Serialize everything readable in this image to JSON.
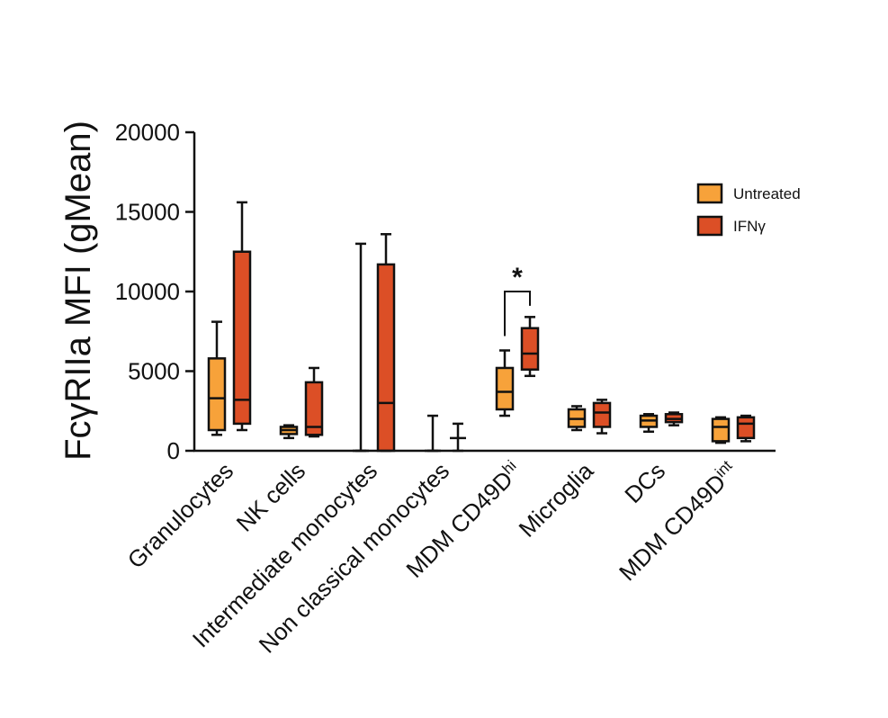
{
  "chart_data": {
    "type": "box",
    "ylabel": "FcγRIIa MFI (gMean)",
    "xlabel": "",
    "ylim": [
      0,
      20000
    ],
    "yticks": [
      0,
      5000,
      10000,
      15000,
      20000
    ],
    "grid": false,
    "legend_position": "top-right",
    "categories": [
      {
        "label": "Granulocytes",
        "sup": ""
      },
      {
        "label": "NK cells",
        "sup": ""
      },
      {
        "label": "Intermediate monocytes",
        "sup": ""
      },
      {
        "label": "Non classical monocytes",
        "sup": ""
      },
      {
        "label": "MDM CD49D",
        "sup": "hi"
      },
      {
        "label": "Microglia",
        "sup": ""
      },
      {
        "label": "DCs",
        "sup": ""
      },
      {
        "label": "MDM CD49D",
        "sup": "int"
      }
    ],
    "series": [
      {
        "name": "Untreated",
        "color": "#F7A23A",
        "boxes": [
          {
            "min": 1000,
            "q1": 1300,
            "median": 3300,
            "q3": 5800,
            "max": 8100
          },
          {
            "min": 800,
            "q1": 1050,
            "median": 1300,
            "q3": 1500,
            "max": 1600
          },
          {
            "min": 0,
            "q1": 0,
            "median": 0,
            "q3": 0,
            "max": 13000
          },
          {
            "min": 0,
            "q1": 0,
            "median": 0,
            "q3": 0,
            "max": 2200
          },
          {
            "min": 2200,
            "q1": 2600,
            "median": 3700,
            "q3": 5200,
            "max": 6300
          },
          {
            "min": 1300,
            "q1": 1500,
            "median": 2000,
            "q3": 2600,
            "max": 2800
          },
          {
            "min": 1200,
            "q1": 1500,
            "median": 1900,
            "q3": 2200,
            "max": 2300
          },
          {
            "min": 500,
            "q1": 600,
            "median": 1500,
            "q3": 2000,
            "max": 2100
          }
        ]
      },
      {
        "name": "IFNγ",
        "color": "#DC4F26",
        "boxes": [
          {
            "min": 1300,
            "q1": 1700,
            "median": 3200,
            "q3": 12500,
            "max": 15600
          },
          {
            "min": 900,
            "q1": 1000,
            "median": 1500,
            "q3": 4300,
            "max": 5200
          },
          {
            "min": 0,
            "q1": 0,
            "median": 3000,
            "q3": 11700,
            "max": 13600
          },
          {
            "min": 0,
            "q1": 800,
            "median": 800,
            "q3": 800,
            "max": 1700
          },
          {
            "min": 4700,
            "q1": 5100,
            "median": 6100,
            "q3": 7700,
            "max": 8400
          },
          {
            "min": 1100,
            "q1": 1500,
            "median": 2400,
            "q3": 3000,
            "max": 3200
          },
          {
            "min": 1600,
            "q1": 1800,
            "median": 2000,
            "q3": 2300,
            "max": 2400
          },
          {
            "min": 600,
            "q1": 800,
            "median": 1700,
            "q3": 2100,
            "max": 2200
          }
        ]
      }
    ],
    "annotations": [
      {
        "text": "*",
        "between_category": 4,
        "series": [
          0,
          1
        ]
      }
    ]
  }
}
